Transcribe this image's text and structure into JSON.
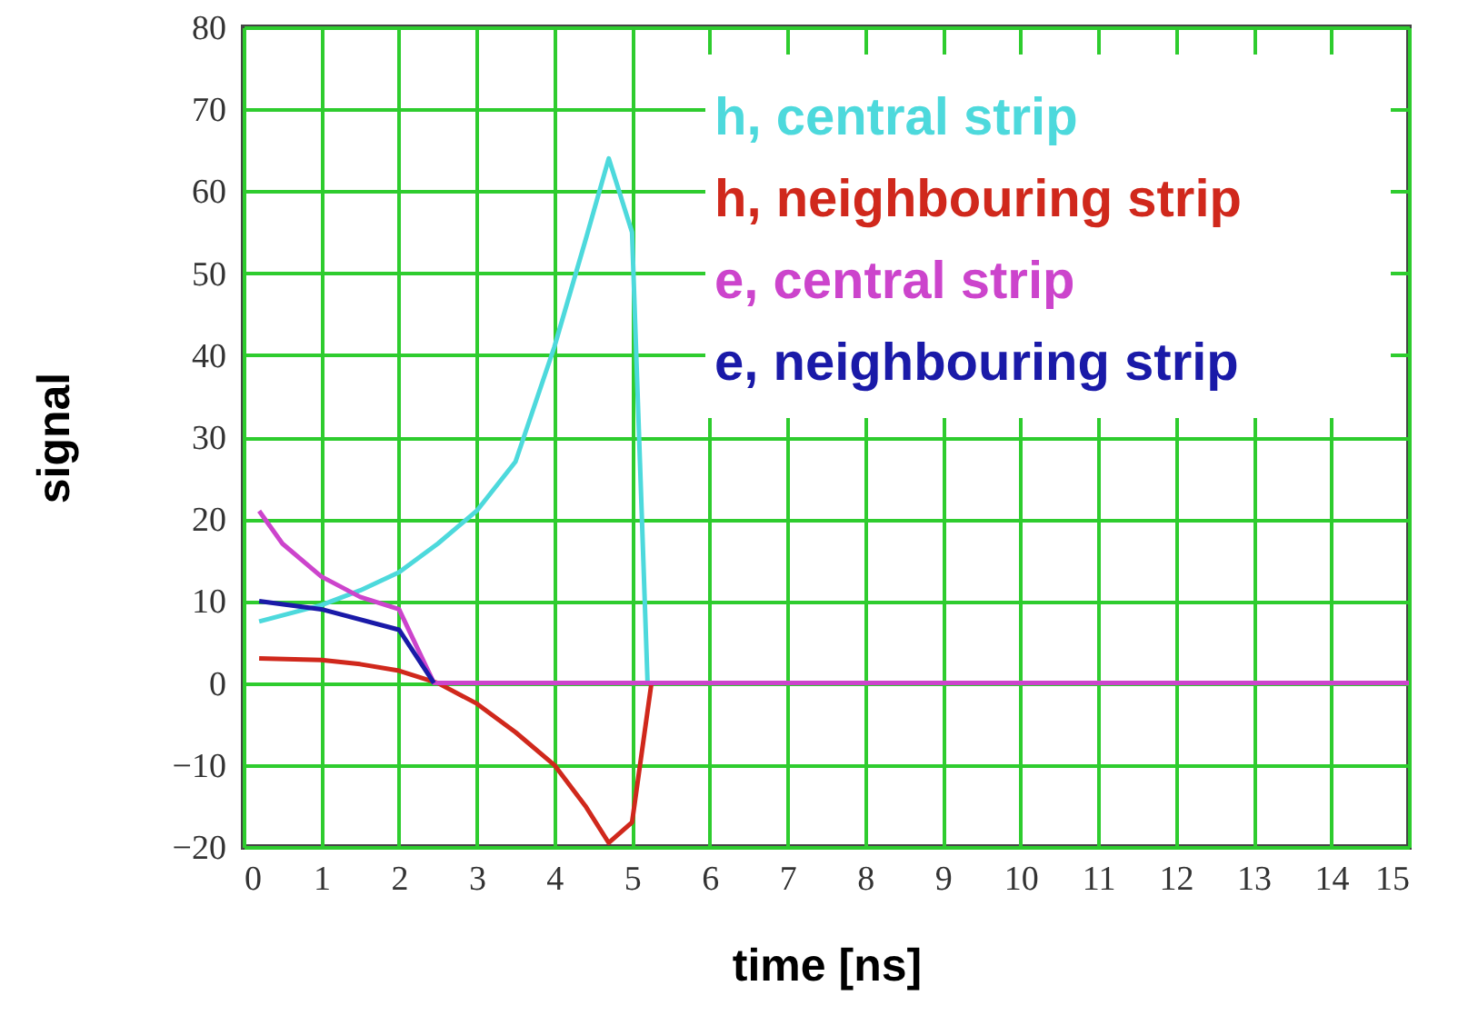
{
  "chart_data": {
    "type": "line",
    "xlabel": "time [ns]",
    "ylabel": "signal",
    "xlim": [
      0,
      15
    ],
    "ylim": [
      -20,
      80
    ],
    "xticks": [
      0,
      1,
      2,
      3,
      4,
      5,
      6,
      7,
      8,
      9,
      10,
      11,
      12,
      13,
      14,
      15
    ],
    "yticks": [
      -20,
      -10,
      0,
      10,
      20,
      30,
      40,
      50,
      60,
      70,
      80
    ],
    "grid": true,
    "legend": "top right",
    "line_style": "solid",
    "marker": "none",
    "series": [
      {
        "name": "h, central strip",
        "color": "#4dd9dc",
        "x": [
          0.2,
          1,
          1.5,
          2,
          2.5,
          3,
          3.5,
          4,
          4.4,
          4.7,
          5,
          5.2
        ],
        "values": [
          7.5,
          9.5,
          11.3,
          13.5,
          17,
          21,
          27,
          41,
          54,
          64,
          55,
          0
        ]
      },
      {
        "name": "h, neighbouring strip",
        "color": "#d0281c",
        "x": [
          0.2,
          1,
          1.5,
          2,
          2.5,
          3,
          3.5,
          4,
          4.4,
          4.7,
          5,
          5.25
        ],
        "values": [
          3,
          2.8,
          2.3,
          1.5,
          0,
          -2.5,
          -6,
          -10,
          -15,
          -19.5,
          -17,
          0
        ]
      },
      {
        "name": "e, central strip",
        "color": "#cc44cc",
        "x": [
          0.2,
          0.5,
          1,
          1.5,
          2,
          2.45,
          15
        ],
        "values": [
          21,
          17,
          13,
          10.5,
          9,
          0,
          0
        ]
      },
      {
        "name": "e, neighbouring strip",
        "color": "#1a1aa8",
        "x": [
          0.2,
          1,
          2,
          2.45
        ],
        "values": [
          10,
          9,
          6.5,
          0
        ]
      }
    ]
  }
}
